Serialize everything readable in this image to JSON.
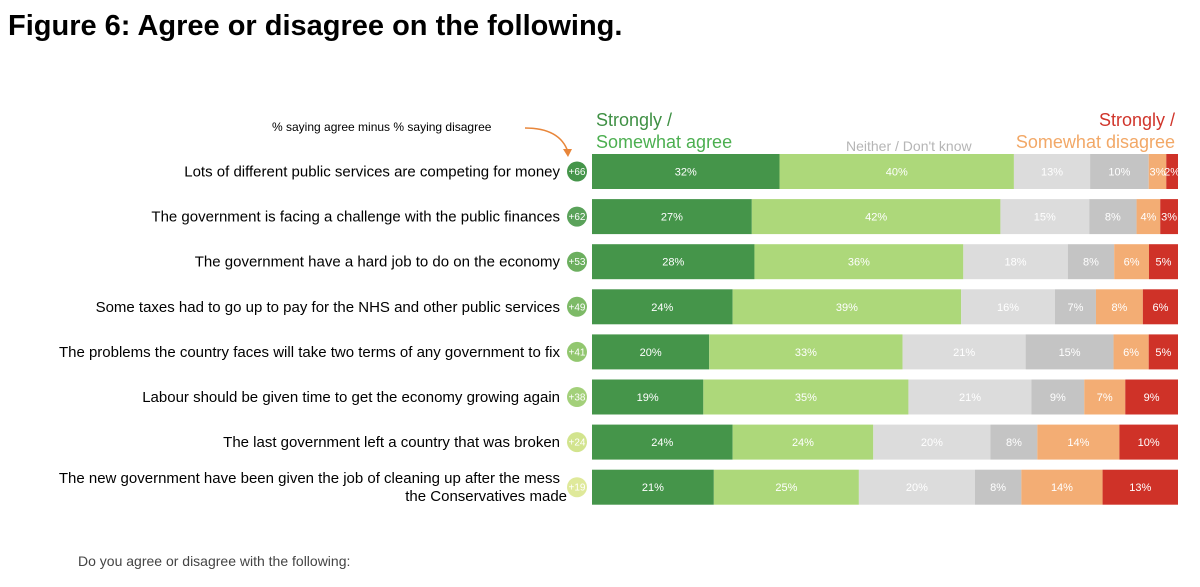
{
  "title": "Figure 6: Agree or disagree on the following.",
  "annotation": "% saying agree minus % saying disagree",
  "footer": "Do you agree or disagree with the following:",
  "legend": {
    "agree_line1": "Strongly /",
    "agree_line2": "Somewhat agree",
    "neither": "Neither / Don't know",
    "disagree_line1": "Strongly /",
    "disagree_line2": "Somewhat disagree"
  },
  "colors": {
    "strongly_agree": "#45954a",
    "somewhat_agree": "#add87a",
    "neither": "#dcdcdc",
    "dont_know": "#c4c4c4",
    "somewhat_disagree": "#f3ad74",
    "strongly_disagree": "#cf3228"
  },
  "chart_data": {
    "type": "bar",
    "orientation": "horizontal-stacked",
    "series": [
      {
        "name": "Strongly agree",
        "values": [
          32,
          27,
          28,
          24,
          20,
          19,
          24,
          21
        ]
      },
      {
        "name": "Somewhat agree",
        "values": [
          40,
          42,
          36,
          39,
          33,
          35,
          24,
          25
        ]
      },
      {
        "name": "Neither",
        "values": [
          13,
          15,
          18,
          16,
          21,
          21,
          20,
          20
        ]
      },
      {
        "name": "Don't know",
        "values": [
          10,
          8,
          8,
          7,
          15,
          9,
          8,
          8
        ]
      },
      {
        "name": "Somewhat disagree",
        "values": [
          3,
          4,
          6,
          8,
          6,
          7,
          14,
          14
        ]
      },
      {
        "name": "Strongly disagree",
        "values": [
          2,
          3,
          5,
          6,
          5,
          9,
          10,
          13
        ]
      }
    ],
    "categories": [
      "Lots of different public services are competing for money",
      "The government is facing a challenge with the public finances",
      "The government have a hard job to do on the economy",
      "Some taxes had to go up to pay for the NHS and other public services",
      "The problems the country faces will take two terms of any government to fix",
      "Labour should be given time to get the economy growing again",
      "The last government left a country that was broken",
      "The new government have been given the job of cleaning up after the mess the Conservatives made"
    ],
    "category_lines": [
      [
        "Lots of different public services are competing for money"
      ],
      [
        "The government is facing a challenge with the public finances"
      ],
      [
        "The government have a hard job to do on the economy"
      ],
      [
        "Some taxes had to go up to pay for the NHS and other public services"
      ],
      [
        "The problems the country faces will take two terms of any government to fix"
      ],
      [
        "Labour should be given time to get the economy growing again"
      ],
      [
        "The last government left a country that was broken"
      ],
      [
        "The new government have been given the job of cleaning up after the mess",
        "the Conservatives made"
      ]
    ],
    "net": [
      "+66",
      "+62",
      "+53",
      "+49",
      "+41",
      "+38",
      "+24",
      "+19"
    ],
    "net_colors": [
      "#45954a",
      "#5aa25a",
      "#6caf5f",
      "#7dba67",
      "#92c76f",
      "#a3d07a",
      "#d2e48e",
      "#dfe99a"
    ],
    "xlim": [
      0,
      100
    ]
  }
}
